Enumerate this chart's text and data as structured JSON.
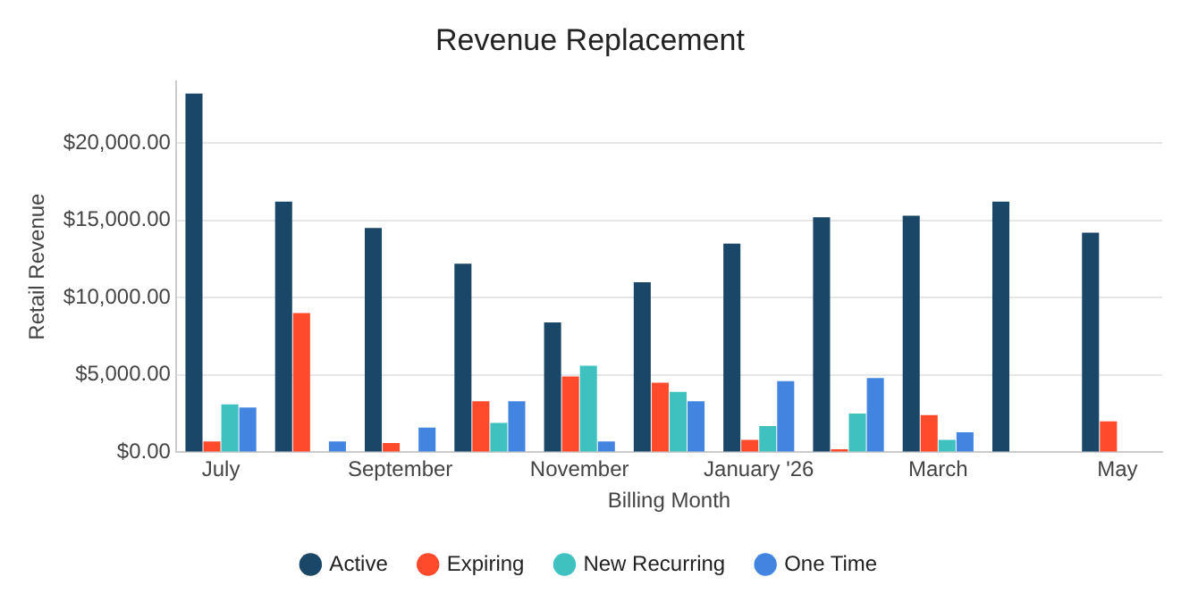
{
  "chart_data": {
    "type": "bar",
    "title": "Revenue Replacement",
    "xlabel": "Billing Month",
    "ylabel": "Retail Revenue",
    "categories": [
      "July",
      null,
      "September",
      null,
      "November",
      null,
      "January '26",
      null,
      "March",
      null,
      "May"
    ],
    "series": [
      {
        "name": "Active",
        "color": "#1a4767",
        "values": [
          23200,
          16200,
          14500,
          12200,
          8400,
          11000,
          13500,
          15200,
          15300,
          16200,
          14200
        ]
      },
      {
        "name": "Expiring",
        "color": "#ff4b2b",
        "values": [
          700,
          9000,
          600,
          3300,
          4900,
          4500,
          800,
          200,
          2400,
          0,
          2000
        ]
      },
      {
        "name": "New Recurring",
        "color": "#3fc1c0",
        "values": [
          3100,
          0,
          0,
          1900,
          5600,
          3900,
          1700,
          2500,
          800,
          0,
          0
        ]
      },
      {
        "name": "One Time",
        "color": "#4285e0",
        "values": [
          2900,
          700,
          1600,
          3300,
          700,
          3300,
          4600,
          4800,
          1300,
          0,
          0
        ]
      }
    ],
    "yticks": [
      {
        "value": 0,
        "label": "$0.00"
      },
      {
        "value": 5000,
        "label": "$5,000.00"
      },
      {
        "value": 10000,
        "label": "$10,000.00"
      },
      {
        "value": 15000,
        "label": "$15,000.00"
      },
      {
        "value": 20000,
        "label": "$20,000.00"
      }
    ],
    "ylim": [
      0,
      24000
    ],
    "grid": "y",
    "legend": "bottom"
  }
}
